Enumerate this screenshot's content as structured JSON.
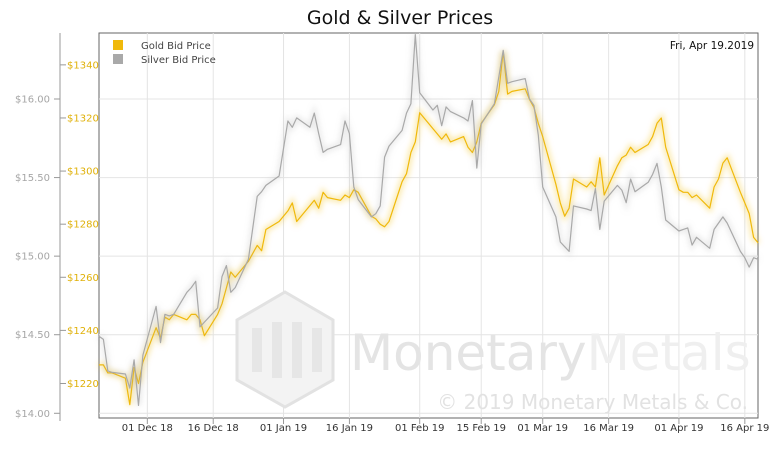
{
  "chart_data": {
    "type": "line",
    "title": "Gold & Silver Prices",
    "date_label": "Fri, Apr 19.2019",
    "watermark": {
      "brand_left": "Monetary",
      "brand_right": "Metals",
      "copyright": "© 2019 Monetary Metals & Co."
    },
    "x_ticks": [
      "01 Dec 18",
      "16 Dec 18",
      "01 Jan 19",
      "16 Jan 19",
      "01 Feb 19",
      "15 Feb 19",
      "01 Mar 19",
      "16 Mar 19",
      "01 Apr 19",
      "16 Apr 19"
    ],
    "x_range": [
      "2018-11-20",
      "2019-04-19"
    ],
    "y_left": {
      "ticks": [
        "$14.00",
        "$14.50",
        "$15.00",
        "$15.50",
        "$16.00"
      ],
      "range": [
        13.97,
        16.42
      ]
    },
    "y_right": {
      "ticks": [
        "$1220",
        "$1240",
        "$1260",
        "$1280",
        "$1300",
        "$1320",
        "$1340"
      ],
      "range": [
        1207,
        1352
      ]
    },
    "colors": {
      "gold": "#f0b90b",
      "silver": "#a9a9a9"
    },
    "series": [
      {
        "name": "Gold Bid Price",
        "axis": "right",
        "x": [
          "2018-11-20",
          "2018-11-21",
          "2018-11-22",
          "2018-11-23",
          "2018-11-26",
          "2018-11-27",
          "2018-11-28",
          "2018-11-29",
          "2018-11-30",
          "2018-12-03",
          "2018-12-04",
          "2018-12-05",
          "2018-12-06",
          "2018-12-07",
          "2018-12-10",
          "2018-12-11",
          "2018-12-12",
          "2018-12-13",
          "2018-12-14",
          "2018-12-17",
          "2018-12-18",
          "2018-12-19",
          "2018-12-20",
          "2018-12-21",
          "2018-12-24",
          "2018-12-26",
          "2018-12-27",
          "2018-12-28",
          "2018-12-31",
          "2019-01-02",
          "2019-01-03",
          "2019-01-04",
          "2019-01-07",
          "2019-01-08",
          "2019-01-09",
          "2019-01-10",
          "2019-01-11",
          "2019-01-14",
          "2019-01-15",
          "2019-01-16",
          "2019-01-17",
          "2019-01-18",
          "2019-01-21",
          "2019-01-22",
          "2019-01-23",
          "2019-01-24",
          "2019-01-25",
          "2019-01-28",
          "2019-01-29",
          "2019-01-30",
          "2019-01-31",
          "2019-02-01",
          "2019-02-04",
          "2019-02-05",
          "2019-02-06",
          "2019-02-07",
          "2019-02-08",
          "2019-02-11",
          "2019-02-12",
          "2019-02-13",
          "2019-02-14",
          "2019-02-15",
          "2019-02-18",
          "2019-02-19",
          "2019-02-20",
          "2019-02-21",
          "2019-02-22",
          "2019-02-25",
          "2019-02-26",
          "2019-02-27",
          "2019-02-28",
          "2019-03-01",
          "2019-03-04",
          "2019-03-05",
          "2019-03-06",
          "2019-03-07",
          "2019-03-08",
          "2019-03-11",
          "2019-03-12",
          "2019-03-13",
          "2019-03-14",
          "2019-03-15",
          "2019-03-18",
          "2019-03-19",
          "2019-03-20",
          "2019-03-21",
          "2019-03-22",
          "2019-03-25",
          "2019-03-26",
          "2019-03-27",
          "2019-03-28",
          "2019-03-29",
          "2019-04-01",
          "2019-04-02",
          "2019-04-03",
          "2019-04-04",
          "2019-04-05",
          "2019-04-08",
          "2019-04-09",
          "2019-04-10",
          "2019-04-11",
          "2019-04-12",
          "2019-04-15",
          "2019-04-16",
          "2019-04-17",
          "2019-04-18",
          "2019-04-19"
        ],
        "values": [
          1227,
          1227,
          1224,
          1224,
          1222,
          1212,
          1226,
          1220,
          1228,
          1241,
          1237,
          1245,
          1244,
          1246,
          1244,
          1246,
          1246,
          1244,
          1238,
          1246,
          1250,
          1256,
          1262,
          1260,
          1266,
          1272,
          1270,
          1278,
          1281,
          1285,
          1288,
          1281,
          1287,
          1289,
          1286,
          1292,
          1290,
          1289,
          1291,
          1290,
          1293,
          1292,
          1283,
          1282,
          1280,
          1279,
          1281,
          1296,
          1299,
          1307,
          1311,
          1322,
          1316,
          1314,
          1312,
          1314,
          1311,
          1313,
          1309,
          1307,
          1311,
          1318,
          1325,
          1330,
          1345,
          1329,
          1330,
          1331,
          1327,
          1324,
          1318,
          1313,
          1295,
          1288,
          1283,
          1286,
          1297,
          1294,
          1296,
          1294,
          1305,
          1291,
          1302,
          1305,
          1306,
          1309,
          1307,
          1310,
          1313,
          1318,
          1320,
          1309,
          1293,
          1292,
          1292,
          1290,
          1291,
          1286,
          1294,
          1297,
          1303,
          1305,
          1292,
          1288,
          1284,
          1275,
          1273
        ]
      },
      {
        "name": "Silver Bid Price",
        "axis": "left",
        "x": [
          "2018-11-20",
          "2018-11-21",
          "2018-11-22",
          "2018-11-23",
          "2018-11-26",
          "2018-11-27",
          "2018-11-28",
          "2018-11-29",
          "2018-11-30",
          "2018-12-03",
          "2018-12-04",
          "2018-12-05",
          "2018-12-06",
          "2018-12-07",
          "2018-12-10",
          "2018-12-11",
          "2018-12-12",
          "2018-12-13",
          "2018-12-14",
          "2018-12-17",
          "2018-12-18",
          "2018-12-19",
          "2018-12-20",
          "2018-12-21",
          "2018-12-24",
          "2018-12-26",
          "2018-12-27",
          "2018-12-28",
          "2018-12-31",
          "2019-01-02",
          "2019-01-03",
          "2019-01-04",
          "2019-01-07",
          "2019-01-08",
          "2019-01-09",
          "2019-01-10",
          "2019-01-11",
          "2019-01-14",
          "2019-01-15",
          "2019-01-16",
          "2019-01-17",
          "2019-01-18",
          "2019-01-21",
          "2019-01-22",
          "2019-01-23",
          "2019-01-24",
          "2019-01-25",
          "2019-01-28",
          "2019-01-29",
          "2019-01-30",
          "2019-01-31",
          "2019-02-01",
          "2019-02-04",
          "2019-02-05",
          "2019-02-06",
          "2019-02-07",
          "2019-02-08",
          "2019-02-11",
          "2019-02-12",
          "2019-02-13",
          "2019-02-14",
          "2019-02-15",
          "2019-02-18",
          "2019-02-19",
          "2019-02-20",
          "2019-02-21",
          "2019-02-22",
          "2019-02-25",
          "2019-02-26",
          "2019-02-27",
          "2019-02-28",
          "2019-03-01",
          "2019-03-04",
          "2019-03-05",
          "2019-03-06",
          "2019-03-07",
          "2019-03-08",
          "2019-03-11",
          "2019-03-12",
          "2019-03-13",
          "2019-03-14",
          "2019-03-15",
          "2019-03-18",
          "2019-03-19",
          "2019-03-20",
          "2019-03-21",
          "2019-03-22",
          "2019-03-25",
          "2019-03-26",
          "2019-03-27",
          "2019-03-28",
          "2019-03-29",
          "2019-04-01",
          "2019-04-02",
          "2019-04-03",
          "2019-04-04",
          "2019-04-05",
          "2019-04-08",
          "2019-04-09",
          "2019-04-10",
          "2019-04-11",
          "2019-04-12",
          "2019-04-15",
          "2019-04-16",
          "2019-04-17",
          "2019-04-18",
          "2019-04-19"
        ],
        "values": [
          14.49,
          14.47,
          14.27,
          14.26,
          14.25,
          14.16,
          14.34,
          14.05,
          14.37,
          14.68,
          14.45,
          14.63,
          14.62,
          14.63,
          14.77,
          14.8,
          14.84,
          14.55,
          14.58,
          14.67,
          14.87,
          14.94,
          14.77,
          14.8,
          14.98,
          15.38,
          15.41,
          15.45,
          15.51,
          15.86,
          15.82,
          15.88,
          15.82,
          15.91,
          15.78,
          15.66,
          15.68,
          15.71,
          15.86,
          15.78,
          15.44,
          15.36,
          15.25,
          15.27,
          15.32,
          15.63,
          15.7,
          15.8,
          15.91,
          15.97,
          16.41,
          16.04,
          15.93,
          15.96,
          15.83,
          15.95,
          15.92,
          15.88,
          15.86,
          15.99,
          15.56,
          15.84,
          15.97,
          16.14,
          16.31,
          16.1,
          16.11,
          16.13,
          16.0,
          15.96,
          15.77,
          15.44,
          15.25,
          15.09,
          15.06,
          15.03,
          15.32,
          15.3,
          15.29,
          15.43,
          15.17,
          15.35,
          15.45,
          15.42,
          15.34,
          15.49,
          15.41,
          15.47,
          15.52,
          15.59,
          15.44,
          15.23,
          15.16,
          15.17,
          15.18,
          15.07,
          15.12,
          15.05,
          15.17,
          15.21,
          15.25,
          15.21,
          15.03,
          14.99,
          14.93,
          14.99,
          14.98
        ]
      }
    ]
  }
}
